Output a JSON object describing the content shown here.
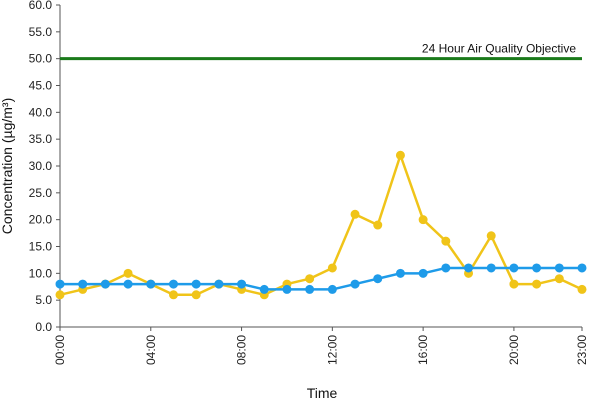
{
  "chart_data": {
    "type": "line",
    "xlabel": "Time",
    "ylabel": "Concentration (µg/m³)",
    "ylim": [
      0,
      60
    ],
    "y_ticks": [
      "0.0",
      "5.0",
      "10.0",
      "15.0",
      "20.0",
      "25.0",
      "30.0",
      "35.0",
      "40.0",
      "45.0",
      "50.0",
      "55.0",
      "60.0"
    ],
    "x": [
      "00:00",
      "01:00",
      "02:00",
      "03:00",
      "04:00",
      "05:00",
      "06:00",
      "07:00",
      "08:00",
      "09:00",
      "10:00",
      "11:00",
      "12:00",
      "13:00",
      "14:00",
      "15:00",
      "16:00",
      "17:00",
      "18:00",
      "19:00",
      "20:00",
      "21:00",
      "22:00",
      "23:00"
    ],
    "x_tick_labels": [
      "00:00",
      "04:00",
      "08:00",
      "12:00",
      "16:00",
      "20:00",
      "23:00"
    ],
    "grid": false,
    "reference_line": {
      "label": "24 Hour Air Quality Objective",
      "value": 50,
      "color": "#1a7a1a"
    },
    "series": [
      {
        "color": "#f0c419",
        "values": [
          6,
          7,
          8,
          10,
          8,
          6,
          6,
          8,
          7,
          6,
          8,
          9,
          11,
          21,
          19,
          32,
          20,
          16,
          10,
          17,
          8,
          8,
          9,
          7
        ]
      },
      {
        "color": "#1e9be9",
        "values": [
          8,
          8,
          8,
          8,
          8,
          8,
          8,
          8,
          8,
          7,
          7,
          7,
          7,
          8,
          9,
          10,
          10,
          11,
          11,
          11,
          11,
          11,
          11,
          11
        ]
      }
    ]
  }
}
